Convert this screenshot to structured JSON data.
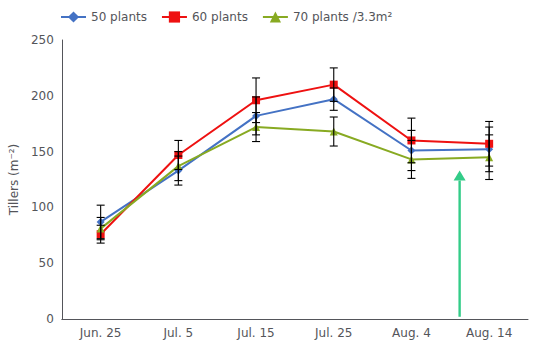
{
  "chart_data": {
    "type": "line",
    "categories": [
      "Jun. 25",
      "Jul. 5",
      "Jul. 15",
      "Jul. 25",
      "Aug. 4",
      "Aug. 14"
    ],
    "series": [
      {
        "name": "50 plants",
        "color": "#4472C4",
        "marker": "diamond",
        "values": [
          87,
          133,
          182,
          197,
          151,
          152
        ],
        "yerr": [
          15,
          13,
          17,
          10,
          18,
          20
        ]
      },
      {
        "name": "60 plants",
        "color": "#EE1111",
        "marker": "square",
        "values": [
          76,
          147,
          196,
          210,
          160,
          157
        ],
        "yerr": [
          8,
          13,
          20,
          15,
          20,
          20
        ]
      },
      {
        "name": "70 plants /3.3m²",
        "color": "#88AA22",
        "marker": "triangle",
        "values": [
          81,
          137,
          172,
          168,
          143,
          145
        ],
        "yerr": [
          10,
          13,
          13,
          13,
          17,
          20
        ]
      }
    ],
    "ylabel": "Tillers (m⁻²)",
    "ylim": [
      0,
      250
    ],
    "yticks": [
      0,
      50,
      100,
      150,
      200,
      250
    ],
    "grid": false,
    "legend": "upper left",
    "annotations": [
      {
        "type": "arrow",
        "x": 4.62,
        "y_start": 2,
        "y_end": 133,
        "color": "#33CC88"
      }
    ]
  }
}
